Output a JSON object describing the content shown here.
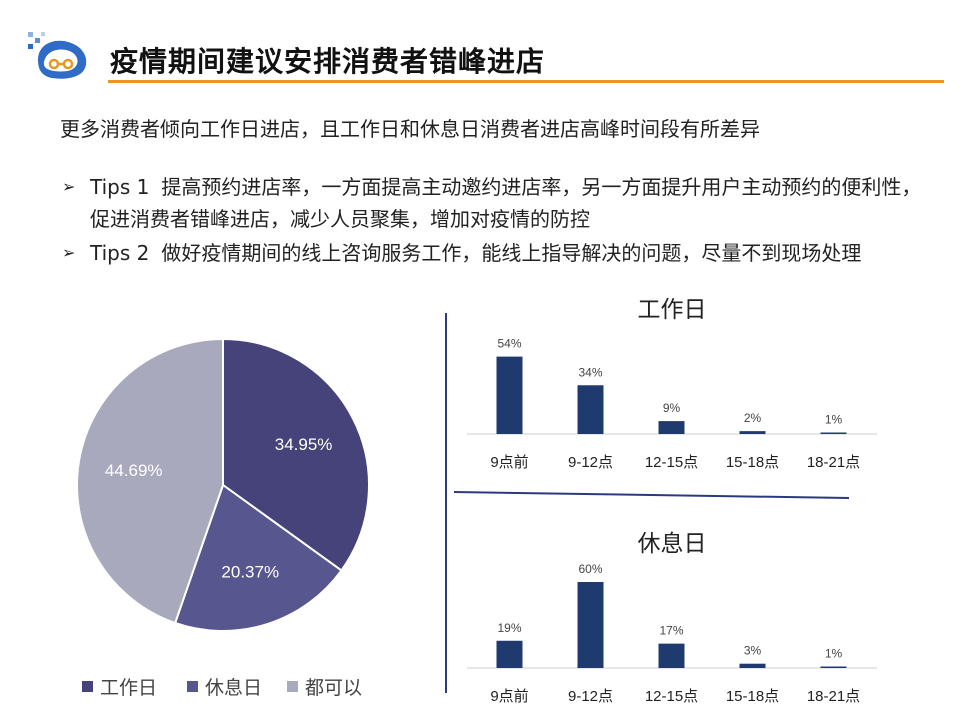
{
  "page": {
    "title": "疫情期间建议安排消费者错峰进店",
    "subtitle": "更多消费者倾向工作日进店，且工作日和休息日消费者进店高峰时间段有所差异",
    "tips": [
      {
        "tag": "Tips 1",
        "text": "提高预约进店率，一方面提高主动邀约进店率，另一方面提升用户主动预约的便利性，促进消费者错峰进店，减少人员聚集，增加对疫情的防控"
      },
      {
        "tag": "Tips 2",
        "text": "做好疫情期间的线上咨询服务工作，能线上指导解决的问题，尽量不到现场处理"
      }
    ],
    "colors": {
      "accent": "#e8981f",
      "bar": "#1f3a6e"
    }
  },
  "chart_data": [
    {
      "type": "pie",
      "categories": [
        "工作日",
        "休息日",
        "都可以"
      ],
      "values": [
        34.95,
        20.37,
        44.69
      ],
      "labels": [
        "34.95%",
        "20.37%",
        "44.69%"
      ],
      "colors": [
        "#46437a",
        "#58568e",
        "#a9a9bd"
      ],
      "legend_position": "bottom"
    },
    {
      "type": "bar",
      "title": "工作日",
      "categories": [
        "9点前",
        "9-12点",
        "12-15点",
        "15-18点",
        "18-21点"
      ],
      "values": [
        54,
        34,
        9,
        2,
        1
      ],
      "labels": [
        "54%",
        "34%",
        "9%",
        "2%",
        "1%"
      ],
      "ylim": [
        0,
        60
      ],
      "grid": false
    },
    {
      "type": "bar",
      "title": "休息日",
      "categories": [
        "9点前",
        "9-12点",
        "12-15点",
        "15-18点",
        "18-21点"
      ],
      "values": [
        19,
        60,
        17,
        3,
        1
      ],
      "labels": [
        "19%",
        "60%",
        "17%",
        "3%",
        "1%"
      ],
      "ylim": [
        0,
        60
      ],
      "grid": false
    }
  ]
}
